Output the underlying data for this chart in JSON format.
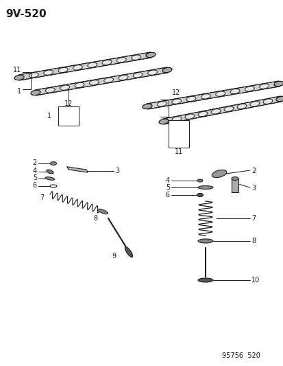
{
  "title": "9V-520",
  "footer": "95756  520",
  "bg_color": "#ffffff",
  "title_fontsize": 11,
  "footer_fontsize": 7,
  "label_fontsize": 7.5,
  "line_color": "#1a1a1a",
  "part_color": "#555555",
  "part_edge": "#111111",
  "shaft_color": "#444444",
  "lobe_face": "#e8e8e8",
  "lobe_edge": "#222222"
}
